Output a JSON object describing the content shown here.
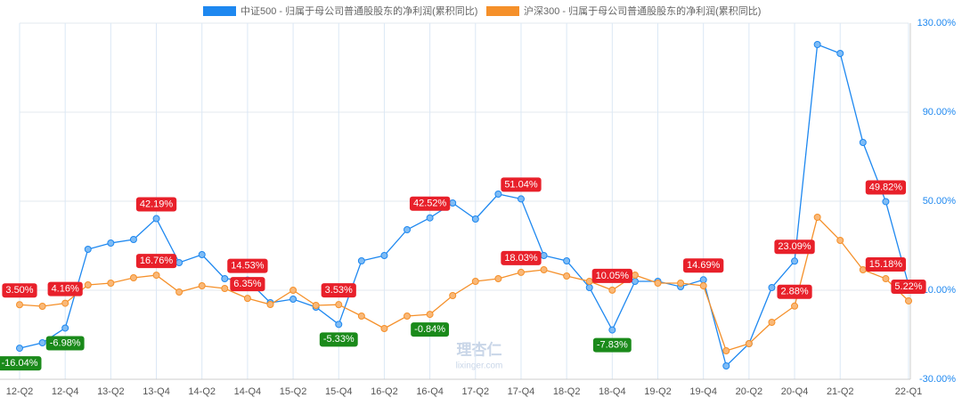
{
  "chart_data": {
    "type": "line",
    "watermark": [
      "理杏仁",
      "lixinger.com"
    ],
    "categories": [
      "12-Q2",
      null,
      "12-Q4",
      null,
      "13-Q2",
      null,
      "13-Q4",
      null,
      "14-Q2",
      null,
      "14-Q4",
      null,
      "15-Q2",
      null,
      "15-Q4",
      null,
      "16-Q2",
      null,
      "16-Q4",
      null,
      "17-Q2",
      null,
      "17-Q4",
      null,
      "18-Q2",
      null,
      "18-Q4",
      null,
      "19-Q2",
      null,
      "19-Q4",
      null,
      "20-Q2",
      null,
      "20-Q4",
      null,
      "21-Q2",
      null,
      null,
      "22-Q1"
    ],
    "series": [
      {
        "name": "中证500 - 归属于母公司普通股股东的净利润(累积同比)",
        "color": "#1e88f0",
        "values": [
          -16.04,
          -13.6,
          -6.98,
          28.4,
          31.2,
          32.8,
          42.19,
          22.4,
          26,
          15.2,
          14.53,
          4.4,
          6,
          2.4,
          -5.33,
          23.2,
          25.6,
          37.2,
          42.52,
          49.2,
          42,
          53.2,
          51.04,
          25.6,
          23.2,
          11.2,
          -7.83,
          14,
          14,
          11.6,
          14.69,
          -24,
          -14,
          11.2,
          23.09,
          120.4,
          116.4,
          76.4,
          49.82,
          12.4
        ],
        "value_labels": [
          "-16.04%",
          null,
          "-6.98%",
          null,
          null,
          null,
          "42.19%",
          null,
          null,
          null,
          "14.53%",
          null,
          null,
          null,
          "-5.33%",
          null,
          null,
          null,
          "42.52%",
          null,
          null,
          null,
          "51.04%",
          null,
          null,
          null,
          "-7.83%",
          null,
          null,
          null,
          "14.69%",
          null,
          null,
          null,
          "23.09%",
          null,
          null,
          null,
          "49.82%",
          null
        ]
      },
      {
        "name": "沪深300 - 归属于母公司普通股股东的净利润(累积同比)",
        "color": "#f5902a",
        "values": [
          3.5,
          2.8,
          4.16,
          12.4,
          13.2,
          15.6,
          16.76,
          9.2,
          12,
          10.8,
          6.35,
          3.6,
          10,
          3.2,
          3.53,
          -1.6,
          -7.2,
          -1.6,
          -0.84,
          7.6,
          14,
          15.2,
          18.03,
          19.2,
          16.4,
          14,
          10.05,
          16.8,
          13.2,
          13.2,
          12,
          -17.2,
          -14,
          -4.4,
          2.88,
          42.8,
          32.4,
          19.2,
          15.18,
          5.22
        ],
        "value_labels": [
          "3.50%",
          null,
          "4.16%",
          null,
          null,
          null,
          "16.76%",
          null,
          null,
          null,
          "6.35%",
          null,
          null,
          null,
          "3.53%",
          null,
          null,
          null,
          "-0.84%",
          null,
          null,
          null,
          "18.03%",
          null,
          null,
          null,
          "10.05%",
          null,
          null,
          null,
          null,
          null,
          null,
          null,
          "2.88%",
          null,
          null,
          null,
          "15.18%",
          "5.22%"
        ]
      }
    ],
    "ylim": [
      -30,
      130
    ],
    "yticks": [
      {
        "value": -30,
        "label": "-30.00%"
      },
      {
        "value": 10,
        "label": "10.00%"
      },
      {
        "value": 50,
        "label": "50.00%"
      },
      {
        "value": 90,
        "label": "90.00%"
      },
      {
        "value": 130,
        "label": "130.00%"
      }
    ],
    "grid": true
  }
}
